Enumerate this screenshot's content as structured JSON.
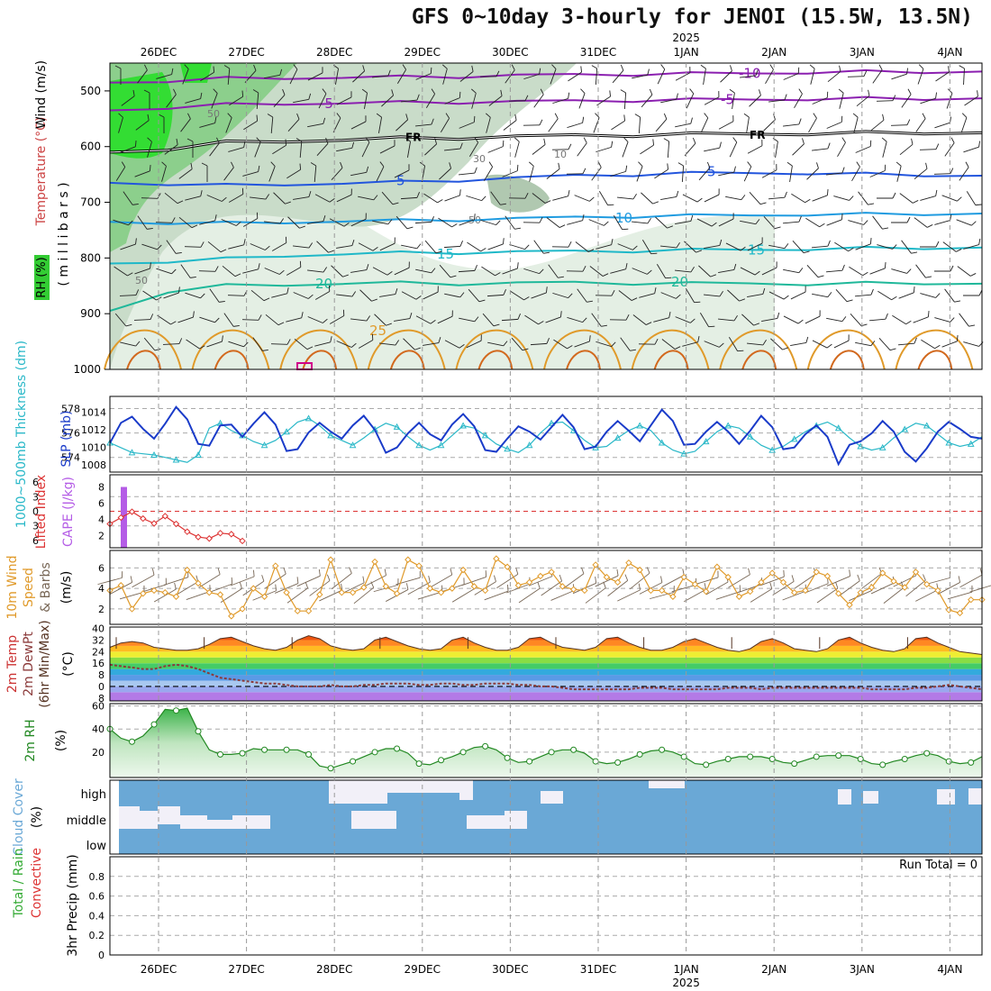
{
  "title": "GFS 0~10day 3-hourly for JENOI (15.5W, 13.5N)",
  "dates": [
    "26DEC",
    "27DEC",
    "28DEC",
    "29DEC",
    "30DEC",
    "31DEC",
    "1JAN",
    "2JAN",
    "3JAN",
    "4JAN"
  ],
  "year_label": "2025",
  "colors": {
    "panel_border": "#000000",
    "grid": "#999999",
    "rh_green": "#33cc33",
    "temp_purple": "#8b1fb0",
    "temp_blue": "#2255dd",
    "temp_cyan": "#1fb8c8",
    "temp_orange": "#e09a2a",
    "slp": "#1a3bc9",
    "thickness": "#2ab8c8",
    "lifted": "#dd3333",
    "cape": "#b45ce6",
    "wind10": "#e09a2a",
    "rh2m": "#228822",
    "cloud": "#6aa8d6",
    "precip": "#33aa33"
  },
  "labels": {
    "upper_rh": "RH (%)",
    "upper_temp": "Temperature (°C)",
    "upper_wind": "Wind (m/s)",
    "upper_axis": "( m i l l i b a r s )",
    "thickness": "1000~500mb Thickness (dm)",
    "slp": "SLP (mb)",
    "lifted": "Lifted Index",
    "cape": "CAPE (J/kg)",
    "wind_a": "10m Wind",
    "wind_b": "Speed",
    "wind_c": "& Barbs",
    "wind_unit": "(m/s)",
    "temp_a": "2m Temp",
    "temp_b": "2m DewPt",
    "temp_c": "(6hr Min/Max)",
    "temp_unit": "(°C)",
    "rh2m": "2m RH",
    "rh_unit": "(%)",
    "cloud_a": "Cloud Cover",
    "cloud_unit": "(%)",
    "cloud_high": "high",
    "cloud_mid": "middle",
    "cloud_low": "low",
    "precip_a": "Total / Rain",
    "precip_b": "Convective",
    "precip_axis": "3hr Precip (mm)",
    "run_total": "Run Total = 0"
  },
  "chart_data": [
    {
      "type": "area",
      "name": "upper-air cross-section",
      "ylabel": "millibars",
      "yticks": [
        500,
        600,
        700,
        800,
        900,
        1000
      ],
      "ylim": [
        450,
        1000
      ],
      "isotherm_labels": [
        "-10",
        "-5",
        "FR",
        "5",
        "10",
        "15",
        "20",
        "25"
      ],
      "isotherms": [
        {
          "label": "-10",
          "p": [
            485,
            482,
            478,
            477,
            476,
            475,
            474,
            472,
            471,
            470,
            469,
            468,
            467,
            466,
            466,
            465
          ]
        },
        {
          "label": "-5",
          "p": [
            535,
            530,
            525,
            523,
            522,
            521,
            520,
            519,
            518,
            517,
            516,
            515,
            515,
            514,
            514,
            513
          ]
        },
        {
          "label": "FR",
          "p": [
            610,
            604,
            593,
            590,
            588,
            585,
            584,
            582,
            580,
            579,
            578,
            577,
            577,
            576,
            575,
            575
          ]
        },
        {
          "label": "5",
          "p": [
            665,
            667,
            670,
            668,
            666,
            664,
            660,
            656,
            652,
            650,
            648,
            647,
            648,
            650,
            651,
            652
          ]
        },
        {
          "label": "10",
          "p": [
            735,
            737,
            738,
            736,
            734,
            733,
            731,
            729,
            727,
            725,
            724,
            723,
            722,
            722,
            721,
            720
          ]
        },
        {
          "label": "15",
          "p": [
            810,
            806,
            802,
            796,
            793,
            791,
            790,
            789,
            788,
            787,
            786,
            785,
            784,
            783,
            782,
            781
          ]
        },
        {
          "label": "20",
          "p": [
            895,
            860,
            850,
            848,
            846,
            845,
            846,
            845,
            844,
            845,
            846,
            845,
            847,
            846,
            845,
            846
          ]
        }
      ],
      "rh_contour_labels": [
        "50",
        "30",
        "10"
      ]
    },
    {
      "type": "line",
      "name": "thickness and sea level pressure",
      "thickness_ticks": [
        574,
        576,
        578
      ],
      "slp_ticks": [
        1008,
        1010,
        1012,
        1014
      ],
      "thickness": [
        575.2,
        574.8,
        574.4,
        574.3,
        574.2,
        574.0,
        573.8,
        573.6,
        574.2,
        576.4,
        576.8,
        576.2,
        575.8,
        575.3,
        575.0,
        575.4,
        576.1,
        576.9,
        577.2,
        576.6,
        575.8,
        575.4,
        575.0,
        575.6,
        576.3,
        576.8,
        576.5,
        575.7,
        575.0,
        574.6,
        575.0,
        575.8,
        576.6,
        576.4,
        575.8,
        575.1,
        574.7,
        574.4,
        575.0,
        576.0,
        576.8,
        576.9,
        576.2,
        575.4,
        574.8,
        574.9,
        575.6,
        576.2,
        576.6,
        576.2,
        575.2,
        574.6,
        574.3,
        574.5,
        575.3,
        576.1,
        576.6,
        576.4,
        575.7,
        575.0,
        574.6,
        574.9,
        575.5,
        576.1,
        576.6,
        576.9,
        576.4,
        575.6,
        574.9,
        574.6,
        574.8,
        575.6,
        576.3,
        576.8,
        576.6,
        575.9,
        575.2,
        574.9,
        575.1,
        575.7
      ],
      "slp": [
        1010.5,
        1012.8,
        1013.5,
        1012.1,
        1011.0,
        1012.7,
        1014.6,
        1013.2,
        1010.4,
        1010.2,
        1012.5,
        1012.6,
        1011.2,
        1012.7,
        1014.0,
        1012.6,
        1009.6,
        1009.8,
        1011.7,
        1012.8,
        1011.8,
        1011.0,
        1012.5,
        1013.6,
        1012.0,
        1009.4,
        1010.0,
        1011.6,
        1012.8,
        1011.5,
        1010.8,
        1012.6,
        1013.8,
        1012.4,
        1009.7,
        1009.5,
        1011.0,
        1012.4,
        1011.8,
        1010.9,
        1012.3,
        1013.7,
        1012.3,
        1009.8,
        1010.1,
        1011.8,
        1013.0,
        1011.9,
        1010.7,
        1012.5,
        1014.3,
        1013.0,
        1010.3,
        1010.4,
        1011.8,
        1012.9,
        1011.8,
        1010.4,
        1011.9,
        1013.6,
        1012.3,
        1009.8,
        1010.0,
        1011.5,
        1012.5,
        1011.2,
        1008.1,
        1010.3,
        1010.7,
        1011.6,
        1013.0,
        1011.8,
        1009.5,
        1008.4,
        1009.9,
        1011.8,
        1012.9,
        1012.1,
        1011.2,
        1011.0
      ]
    },
    {
      "type": "line",
      "name": "lifted index and CAPE",
      "lifted_ticks": [
        -6,
        -3,
        0,
        3,
        6
      ],
      "cape_ticks": [
        2,
        4,
        6,
        8
      ],
      "lifted_index": [
        2.6,
        1.3,
        0.1,
        1.5,
        2.5,
        1.0,
        2.6,
        4.2,
        5.3,
        5.6,
        4.5,
        4.7,
        6.1
      ],
      "cape": [
        8
      ]
    },
    {
      "type": "line",
      "name": "10m wind speed",
      "yticks": [
        2,
        4,
        6
      ],
      "speed": [
        3.8,
        4.3,
        2.0,
        3.5,
        3.8,
        3.6,
        3.2,
        5.8,
        4.5,
        3.6,
        3.4,
        1.3,
        2.0,
        4.0,
        3.2,
        6.2,
        3.6,
        1.8,
        1.8,
        3.4,
        6.8,
        3.6,
        3.6,
        4.1,
        6.6,
        4.2,
        3.5,
        6.8,
        6.2,
        4.0,
        3.6,
        4.0,
        5.8,
        4.2,
        3.8,
        6.9,
        6.1,
        4.3,
        4.6,
        5.2,
        5.6,
        4.2,
        3.9,
        3.8,
        6.3,
        5.1,
        4.6,
        6.5,
        5.8,
        3.8,
        3.8,
        3.2,
        5.1,
        4.4,
        3.7,
        6.1,
        5.1,
        3.2,
        3.7,
        4.6,
        5.5,
        4.6,
        3.6,
        3.8,
        5.6,
        5.2,
        3.5,
        2.4,
        3.6,
        4.1,
        5.5,
        4.7,
        4.1,
        5.6,
        4.4,
        3.8,
        1.9,
        1.6,
        2.9,
        2.9
      ]
    },
    {
      "type": "area",
      "name": "2m temperature and dew point",
      "yticks": [
        -8,
        0,
        8,
        16,
        24,
        32,
        40
      ],
      "temp": [
        27,
        30,
        31,
        30,
        27,
        26,
        25,
        25,
        26,
        29,
        33,
        34,
        31,
        28,
        26,
        25,
        27,
        32,
        35,
        33,
        28,
        26,
        25,
        26,
        32,
        34,
        31,
        28,
        26,
        25,
        26,
        32,
        34,
        30,
        27,
        25,
        25,
        27,
        33,
        34,
        30,
        27,
        26,
        25,
        27,
        33,
        34,
        30,
        27,
        25,
        25,
        27,
        31,
        33,
        30,
        27,
        25,
        24,
        26,
        31,
        33,
        30,
        26,
        25,
        24,
        26,
        32,
        34,
        30,
        27,
        25,
        24,
        26,
        33,
        34,
        30,
        27,
        24,
        23,
        22
      ],
      "dewpoint": [
        15,
        14,
        13,
        12,
        12,
        14,
        15,
        14,
        12,
        9,
        6,
        5,
        4,
        3,
        2,
        2,
        1,
        0,
        0,
        0,
        1,
        0,
        0,
        1,
        1,
        2,
        2,
        2,
        1,
        1,
        2,
        2,
        1,
        1,
        2,
        2,
        2,
        1,
        1,
        0,
        0,
        -1,
        -2,
        -2,
        -2,
        -2,
        -2,
        -2,
        -1,
        -1,
        -1,
        -2,
        -2,
        -2,
        -2,
        -2,
        -1,
        -1,
        -1,
        -2,
        -1,
        -1,
        -1,
        -1,
        -1,
        -1,
        -1,
        -1,
        -1,
        -2,
        -2,
        -2,
        -2,
        -1,
        -1,
        0,
        1,
        0,
        -1,
        -2
      ]
    },
    {
      "type": "area",
      "name": "2m relative humidity",
      "yticks": [
        20,
        40,
        60
      ],
      "rh": [
        40,
        32,
        29,
        34,
        44,
        57,
        56,
        58,
        38,
        22,
        18,
        18,
        19,
        23,
        22,
        22,
        22,
        22,
        18,
        8,
        6,
        9,
        12,
        16,
        20,
        23,
        23,
        19,
        10,
        9,
        13,
        16,
        20,
        24,
        25,
        22,
        15,
        11,
        12,
        16,
        20,
        22,
        22,
        19,
        12,
        10,
        11,
        14,
        18,
        21,
        22,
        20,
        16,
        10,
        9,
        12,
        14,
        16,
        16,
        16,
        14,
        11,
        10,
        13,
        16,
        17,
        17,
        17,
        14,
        10,
        9,
        12,
        14,
        17,
        19,
        17,
        12,
        10,
        11,
        16
      ]
    },
    {
      "type": "area",
      "name": "cloud cover",
      "levels": [
        "high",
        "middle",
        "low"
      ]
    },
    {
      "type": "bar",
      "name": "3hr precipitation",
      "ylabel": "3hr Precip (mm)",
      "yticks": [
        0,
        0.2,
        0.4,
        0.6,
        0.8
      ],
      "ylim": [
        0,
        1
      ],
      "total": [],
      "convective": []
    }
  ]
}
